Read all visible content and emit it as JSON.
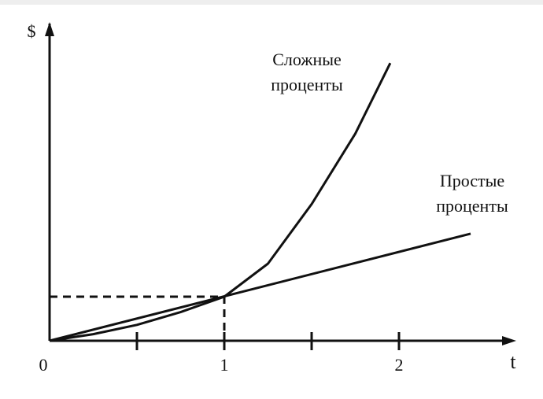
{
  "chart_data": {
    "type": "line",
    "xlabel": "t",
    "ylabel": "$",
    "xlim": [
      0,
      2.65
    ],
    "ylim": [
      0,
      7.1
    ],
    "xticks": [
      0,
      {
        "value": 0.5,
        "label": null
      },
      1,
      {
        "value": 1.5,
        "label": null
      },
      2
    ],
    "intersection": {
      "x": 1,
      "y": 1
    },
    "series": [
      {
        "label": [
          "Сложные",
          "проценты"
        ],
        "color": "#111111",
        "x": [
          0,
          0.25,
          0.5,
          0.75,
          1,
          1.25,
          1.5,
          1.75,
          1.95
        ],
        "values": [
          0,
          0.15,
          0.36,
          0.65,
          1,
          1.75,
          3.1,
          4.7,
          6.3
        ]
      },
      {
        "label": [
          "Простые",
          "проценты"
        ],
        "color": "#111111",
        "x": [
          0,
          2.41
        ],
        "values": [
          0,
          2.43
        ]
      }
    ]
  }
}
